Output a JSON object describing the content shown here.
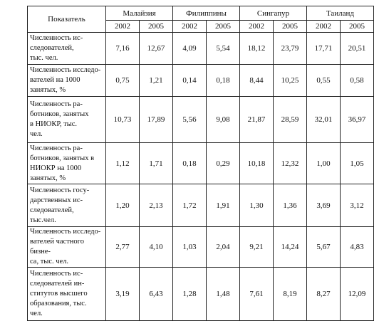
{
  "table": {
    "header": {
      "indicator": "Показатель",
      "countries": [
        "Малайзия",
        "Филиппины",
        "Сингапур",
        "Таиланд"
      ],
      "years": [
        "2002",
        "2005",
        "2002",
        "2005",
        "2002",
        "2005",
        "2002",
        "2005"
      ]
    },
    "rows": [
      {
        "label": "Численность ис-\nследователей,\nтыс. чел.",
        "values": [
          "7,16",
          "12,67",
          "4,09",
          "5,54",
          "18,12",
          "23,79",
          "17,71",
          "20,51"
        ]
      },
      {
        "label": "Численность исследо-\nвателей на 1000\nзанятых, %",
        "values": [
          "0,75",
          "1,21",
          "0,14",
          "0,18",
          "8,44",
          "10,25",
          "0,55",
          "0,58"
        ]
      },
      {
        "label": "Численность ра-\nботников, занятых\nв НИОКР, тыс.\nчел.",
        "values": [
          "10,73",
          "17,89",
          "5,56",
          "9,08",
          "21,87",
          "28,59",
          "32,01",
          "36,97"
        ]
      },
      {
        "label": "Численность ра-\nботников, занятых в\nНИОКР на 1000\nзанятых, %",
        "values": [
          "1,12",
          "1,71",
          "0,18",
          "0,29",
          "10,18",
          "12,32",
          "1,00",
          "1,05"
        ]
      },
      {
        "label": "Численность госу-\nдарственных ис-\nследователей,\nтыс.чел.",
        "values": [
          "1,20",
          "2,13",
          "1,72",
          "1,91",
          "1,30",
          "1,36",
          "3,69",
          "3,12"
        ]
      },
      {
        "label": "Численность исследо-\nвателей частного бизне-\nса, тыс. чел.",
        "values": [
          "2,77",
          "4,10",
          "1,03",
          "2,04",
          "9,21",
          "14,24",
          "5,67",
          "4,83"
        ]
      },
      {
        "label": "Численность ис-\nследователей ин-\nститутов высшего\nобразования, тыс.\nчел.",
        "values": [
          "3,19",
          "6,43",
          "1,28",
          "1,48",
          "7,61",
          "8,19",
          "8,27",
          "12,09"
        ]
      }
    ]
  }
}
